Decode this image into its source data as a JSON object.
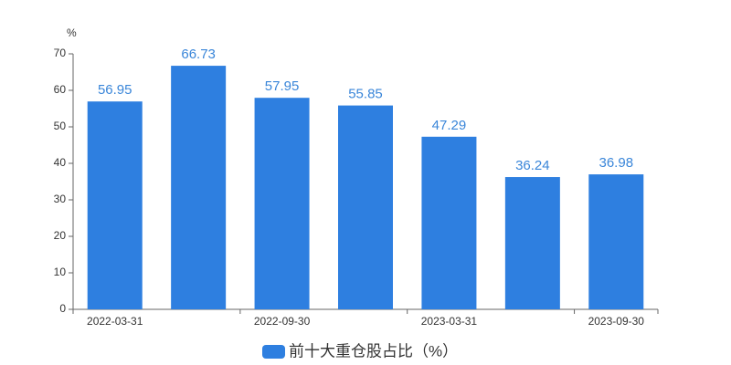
{
  "chart_data": {
    "type": "bar",
    "y_label": "%",
    "categories": [
      "2022-03-31",
      null,
      "2022-09-30",
      null,
      "2023-03-31",
      null,
      "2023-09-30"
    ],
    "series": [
      {
        "name": "前十大重仓股占比（%）",
        "color": "#2e7fe0",
        "values": [
          56.95,
          66.73,
          57.95,
          55.85,
          47.29,
          36.24,
          36.98
        ]
      }
    ],
    "ylim": [
      0,
      70
    ],
    "yticks": [
      0,
      10,
      20,
      30,
      40,
      50,
      60,
      70
    ],
    "grid": false
  }
}
